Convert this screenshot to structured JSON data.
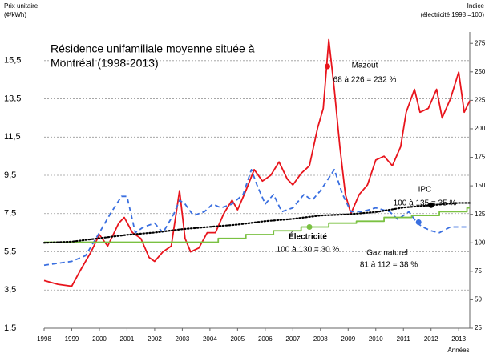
{
  "chart_data": {
    "type": "line",
    "title_lines": [
      "Résidence unifamiliale moyenne située à",
      "Montréal (1998-2013)"
    ],
    "y_label_lines": [
      "Prix unitaire",
      "(¢/kWh)"
    ],
    "y2_label_lines": [
      "Indice",
      "(électricité 1998 =100)"
    ],
    "x_label": "Années",
    "xlim": [
      1998,
      2013.4
    ],
    "xticks": [
      1998,
      1999,
      2000,
      2001,
      2002,
      2003,
      2004,
      2005,
      2006,
      2007,
      2008,
      2009,
      2010,
      2011,
      2012,
      2013
    ],
    "ylim": [
      1.5,
      17
    ],
    "yticks": [
      {
        "value": 1.5,
        "label": "1,5"
      },
      {
        "value": 3.5,
        "label": "3,5"
      },
      {
        "value": 5.5,
        "label": "5,5"
      },
      {
        "value": 7.5,
        "label": "7,5"
      },
      {
        "value": 9.5,
        "label": "9,5"
      },
      {
        "value": 11.5,
        "label": "11,5"
      },
      {
        "value": 13.5,
        "label": "13,5"
      },
      {
        "value": 15.5,
        "label": "15,5"
      }
    ],
    "y2lim": [
      25,
      285
    ],
    "y2ticks": [
      25,
      50,
      75,
      100,
      125,
      150,
      175,
      200,
      225,
      250,
      275
    ],
    "grid": true,
    "series": [
      {
        "name": "Mazout",
        "color": "#e8141c",
        "style": "solid",
        "x": [
          1998,
          1998.5,
          1999,
          1999.3,
          1999.7,
          2000,
          2000.3,
          2000.7,
          2000.9,
          2001.2,
          2001.5,
          2001.8,
          2002,
          2002.3,
          2002.6,
          2002.9,
          2003.1,
          2003.3,
          2003.6,
          2003.9,
          2004.2,
          2004.5,
          2004.8,
          2005,
          2005.3,
          2005.6,
          2005.9,
          2006.2,
          2006.5,
          2006.8,
          2007,
          2007.3,
          2007.6,
          2007.9,
          2008.1,
          2008.3,
          2008.5,
          2008.7,
          2008.9,
          2009.1,
          2009.4,
          2009.7,
          2010,
          2010.3,
          2010.6,
          2010.9,
          2011.1,
          2011.4,
          2011.6,
          2011.9,
          2012.2,
          2012.4,
          2012.7,
          2013,
          2013.2,
          2013.4
        ],
        "values": [
          4.0,
          3.8,
          3.7,
          4.5,
          5.5,
          6.4,
          5.8,
          7.0,
          7.3,
          6.5,
          6.2,
          5.2,
          5.0,
          5.5,
          5.8,
          8.7,
          6.2,
          5.5,
          5.7,
          6.5,
          6.5,
          7.5,
          8.2,
          7.7,
          8.7,
          9.8,
          9.2,
          9.5,
          10.2,
          9.3,
          9.0,
          9.6,
          10.0,
          12.0,
          13.0,
          16.6,
          14.0,
          11.0,
          8.5,
          7.5,
          8.5,
          9.0,
          10.3,
          10.5,
          10.0,
          11.0,
          12.8,
          14.0,
          12.8,
          13.0,
          14.0,
          12.5,
          13.5,
          14.9,
          12.8,
          13.4
        ]
      },
      {
        "name": "Gaz naturel",
        "color": "#3a6fe0",
        "style": "dashed",
        "x": [
          1998,
          1998.5,
          1999,
          1999.5,
          2000,
          2000.4,
          2000.8,
          2001,
          2001.3,
          2001.6,
          2002,
          2002.3,
          2002.7,
          2002.9,
          2003.1,
          2003.4,
          2003.8,
          2004.1,
          2004.4,
          2004.8,
          2005.2,
          2005.5,
          2005.7,
          2006,
          2006.3,
          2006.6,
          2007,
          2007.4,
          2007.7,
          2008,
          2008.5,
          2008.8,
          2009.1,
          2009.5,
          2010,
          2010.5,
          2010.8,
          2011.2,
          2011.5,
          2011.7,
          2012,
          2012.3,
          2012.7,
          2013,
          2013.4
        ],
        "values": [
          4.8,
          4.9,
          5.0,
          5.3,
          6.5,
          7.5,
          8.4,
          8.4,
          6.5,
          6.8,
          7.0,
          6.5,
          7.5,
          8.2,
          8.0,
          7.4,
          7.6,
          8.0,
          7.8,
          8.0,
          8.5,
          9.8,
          9.0,
          8.0,
          8.5,
          7.6,
          7.8,
          8.5,
          8.2,
          8.7,
          9.8,
          8.5,
          7.6,
          7.6,
          7.8,
          7.6,
          7.2,
          7.6,
          7.0,
          6.8,
          6.6,
          6.5,
          6.8,
          6.8,
          6.8
        ]
      },
      {
        "name": "Électricité",
        "color": "#7ac142",
        "style": "solid",
        "x": [
          1998,
          2004.3,
          2004.3,
          2005.3,
          2005.3,
          2006.3,
          2006.3,
          2007.3,
          2007.3,
          2008.3,
          2008.3,
          2009.3,
          2009.3,
          2010.3,
          2010.3,
          2011.3,
          2011.3,
          2012.3,
          2012.3,
          2013.3,
          2013.3,
          2013.4
        ],
        "values": [
          6.0,
          6.0,
          6.2,
          6.2,
          6.4,
          6.4,
          6.6,
          6.6,
          6.8,
          6.8,
          7.0,
          7.0,
          7.1,
          7.1,
          7.3,
          7.3,
          7.4,
          7.4,
          7.6,
          7.6,
          7.8,
          7.8
        ]
      },
      {
        "name": "IPC",
        "color": "#000000",
        "style": "dotted",
        "axis": "y2",
        "x": [
          1998,
          1999,
          2000,
          2001,
          2002,
          2003,
          2004,
          2005,
          2006,
          2007,
          2008,
          2009,
          2010,
          2011,
          2012,
          2013,
          2013.4
        ],
        "values": [
          100,
          101,
          104,
          107,
          109,
          112,
          114,
          116,
          119,
          121,
          124,
          125,
          127,
          131,
          133,
          135,
          135
        ]
      }
    ],
    "annotations": [
      {
        "text": "Mazout",
        "series": 0,
        "point": [
          2008.25,
          15.2
        ]
      },
      {
        "text": "68 à 226 = 232 %"
      },
      {
        "text": "IPC",
        "series": 3,
        "point": [
          2012.0,
          133
        ]
      },
      {
        "text": "100 à 135 = 35 %"
      },
      {
        "text": "Électricité",
        "series": 2,
        "point": [
          2007.6,
          6.8
        ]
      },
      {
        "text": "100 à 130 = 30 %"
      },
      {
        "text": "Gaz naturel",
        "series": 1,
        "point": [
          2011.55,
          7.05
        ]
      },
      {
        "text": "81 à 112 = 38 %"
      }
    ]
  }
}
